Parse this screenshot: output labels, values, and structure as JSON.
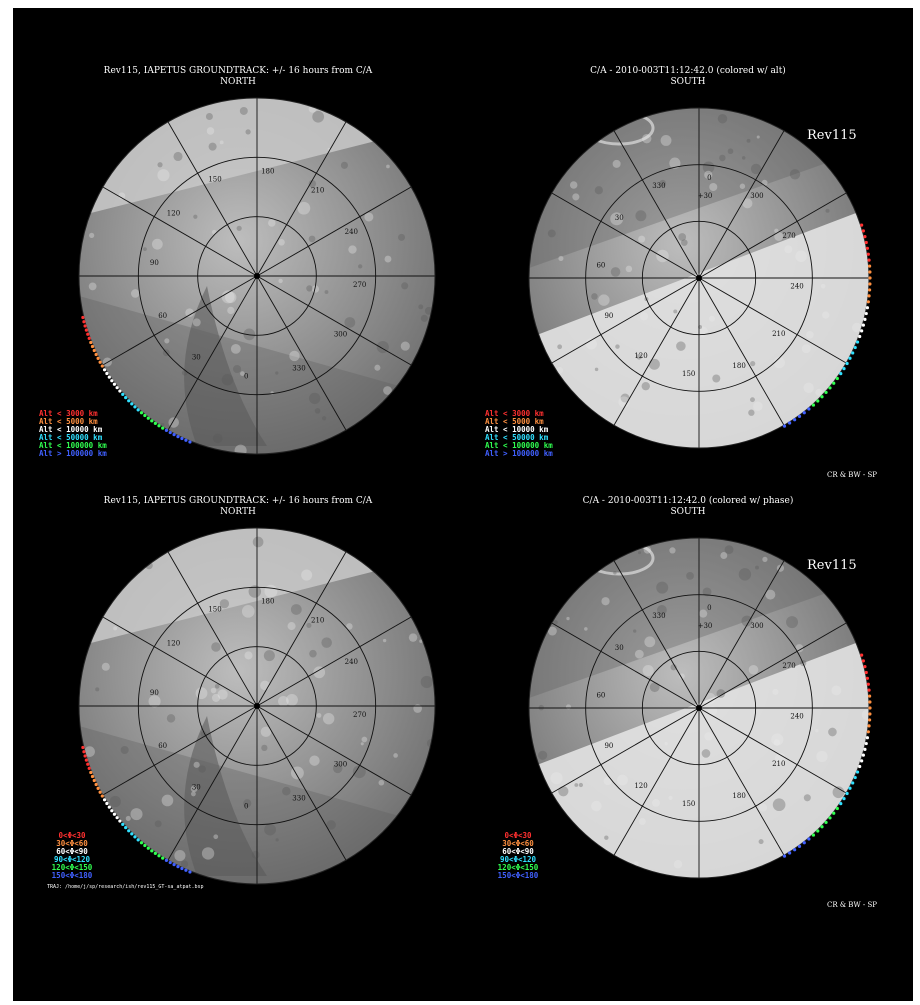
{
  "panels": [
    {
      "title_line1": "Rev115, IAPETUS GROUNDTRACK: +/- 16 hours from C/A",
      "title_line2": "NORTH",
      "hemisphere": "north",
      "body_label": "",
      "credit": "",
      "legend_kind": "altitude",
      "file_path": ""
    },
    {
      "title_line1": "C/A - 2010-003T11:12:42.0 (colored w/ alt)",
      "title_line2": "SOUTH",
      "hemisphere": "south",
      "body_label": "Rev115",
      "credit": "CR & BW - SP",
      "legend_kind": "altitude",
      "file_path": ""
    },
    {
      "title_line1": "Rev115, IAPETUS GROUNDTRACK: +/- 16 hours from C/A",
      "title_line2": "NORTH",
      "hemisphere": "north",
      "body_label": "",
      "credit": "",
      "legend_kind": "phase",
      "file_path": "TRAJ: /home/j/sp/research/ish/rev115_GT-sa_atpat.bsp"
    },
    {
      "title_line1": "C/A - 2010-003T11:12:42.0 (colored w/ phase)",
      "title_line2": "SOUTH",
      "hemisphere": "south",
      "body_label": "Rev115",
      "credit": "CR & BW - SP",
      "legend_kind": "phase",
      "file_path": ""
    }
  ],
  "legends": {
    "altitude": [
      {
        "label": "Alt < 3000 km",
        "color": "#ff3030"
      },
      {
        "label": "Alt < 5000 km",
        "color": "#ff9040"
      },
      {
        "label": "Alt < 10000 km",
        "color": "#ffffff"
      },
      {
        "label": "Alt < 50000 km",
        "color": "#30e0ff"
      },
      {
        "label": "Alt < 100000 km",
        "color": "#30ff50"
      },
      {
        "label": "Alt > 100000 km",
        "color": "#4060ff"
      }
    ],
    "phase": [
      {
        "label": "0<Φ<30",
        "color": "#ff3030"
      },
      {
        "label": "30<Φ<60",
        "color": "#ff9040"
      },
      {
        "label": "60<Φ<90",
        "color": "#ffffff"
      },
      {
        "label": "90<Φ<120",
        "color": "#30e0ff"
      },
      {
        "label": "120<Φ<150",
        "color": "#30ff50"
      },
      {
        "label": "150<Φ<180",
        "color": "#4060ff"
      }
    ]
  },
  "grid": {
    "north_longitude_labels": [
      "180",
      "210",
      "240",
      "270",
      "300",
      "330",
      "0",
      "30",
      "60",
      "90",
      "120",
      "150"
    ],
    "south_longitude_labels": [
      "0",
      "300",
      "270",
      "240",
      "210",
      "180",
      "150",
      "120",
      "90",
      "60",
      "30",
      "330"
    ],
    "latitude_label": "+30"
  },
  "colors": {
    "background": "#000000",
    "dark_terrain": "#8a8a8a",
    "bright_terrain": "#e2e2e2",
    "shade": "#5e5e5e",
    "grid_lines": "#111111"
  }
}
